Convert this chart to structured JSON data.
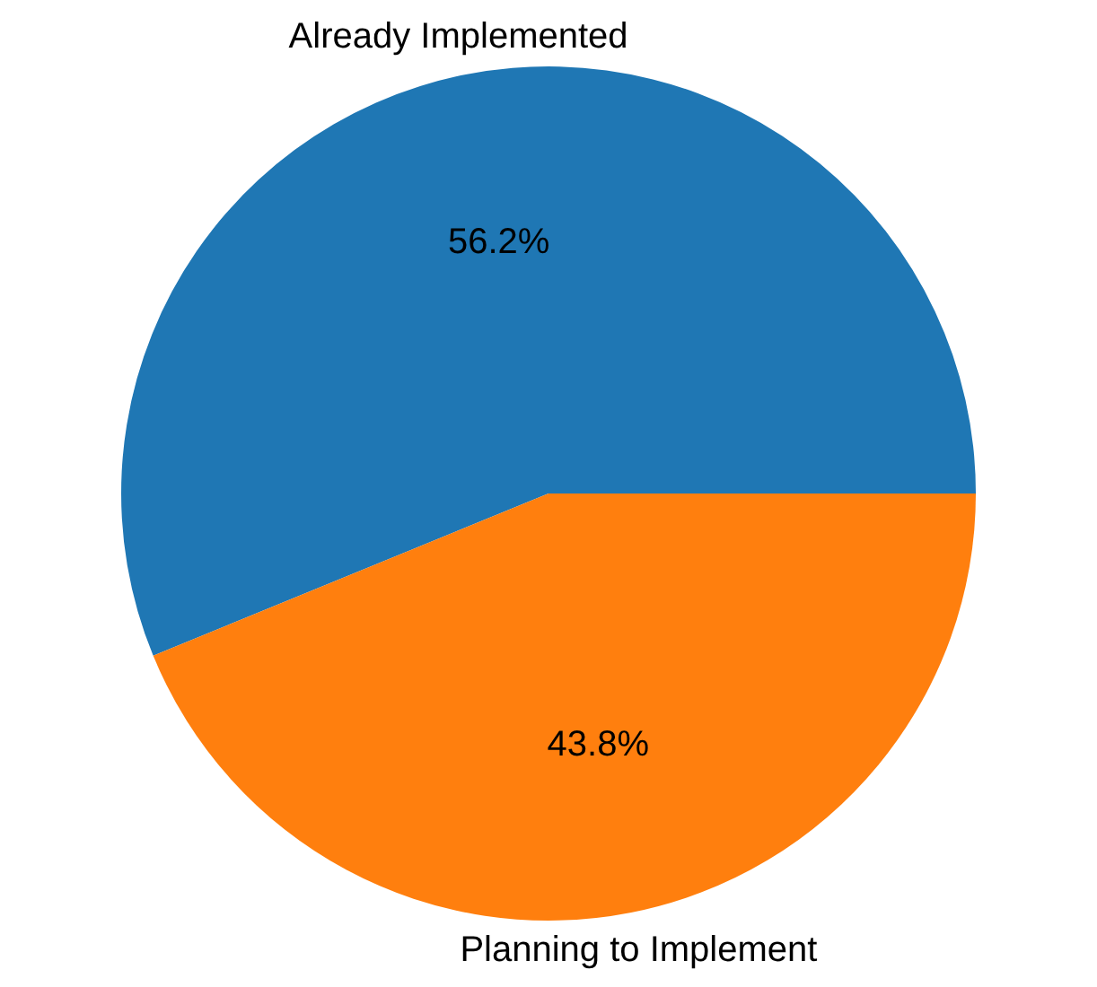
{
  "chart_data": {
    "type": "pie",
    "categories": [
      "Already Implemented",
      "Planning to Implement"
    ],
    "values": [
      56.2,
      43.8
    ],
    "colors": [
      "#1f77b4",
      "#ff7f0e"
    ],
    "value_labels": [
      "56.2%",
      "43.8%"
    ]
  }
}
